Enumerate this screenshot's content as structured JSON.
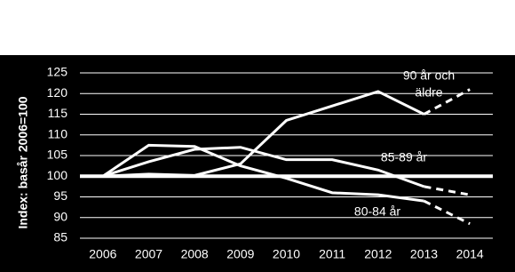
{
  "chart_data": {
    "type": "line",
    "y_label": "Index: basår 2006=100",
    "categories": [
      "2006",
      "2007",
      "2008",
      "2009",
      "2010",
      "2011",
      "2012",
      "2013",
      "2014"
    ],
    "forecast_from": "2013",
    "reference_line": 100,
    "series": [
      {
        "name": [
          "90 år och",
          "äldre"
        ],
        "color": "#ffffff",
        "values": [
          100,
          100.5,
          100.2,
          103,
          113.5,
          117,
          120.5,
          115,
          121
        ]
      },
      {
        "name": [
          "85-89 år"
        ],
        "color": "#ffffff",
        "values": [
          100,
          103.5,
          106.5,
          107,
          104,
          104,
          101.5,
          97.5,
          95.5
        ]
      },
      {
        "name": [
          "80-84 år"
        ],
        "color": "#ffffff",
        "values": [
          100,
          107.5,
          107.2,
          102.5,
          99.5,
          96,
          95.5,
          94,
          88.5
        ]
      }
    ],
    "ylim": [
      85,
      125
    ],
    "yticks": [
      85,
      90,
      95,
      100,
      105,
      110,
      115,
      120,
      125
    ],
    "grid": true
  }
}
